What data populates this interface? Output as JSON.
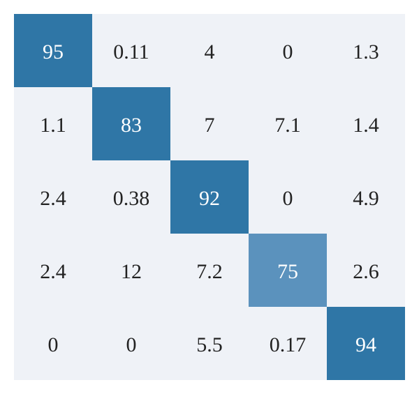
{
  "chart_data": {
    "type": "heatmap",
    "title": "",
    "xlabel": "",
    "ylabel": "",
    "rows": [
      [
        "95",
        "0.11",
        "4",
        "0",
        "1.3"
      ],
      [
        "1.1",
        "83",
        "7",
        "7.1",
        "1.4"
      ],
      [
        "2.4",
        "0.38",
        "92",
        "0",
        "4.9"
      ],
      [
        "2.4",
        "12",
        "7.2",
        "75",
        "2.6"
      ],
      [
        "0",
        "0",
        "5.5",
        "0.17",
        "94"
      ]
    ],
    "colors": {
      "background": "#eff2f7",
      "high": "#2f76a6",
      "mid": "#5b92bd",
      "text_dark": "#222222",
      "text_light": "#ffffff"
    }
  }
}
